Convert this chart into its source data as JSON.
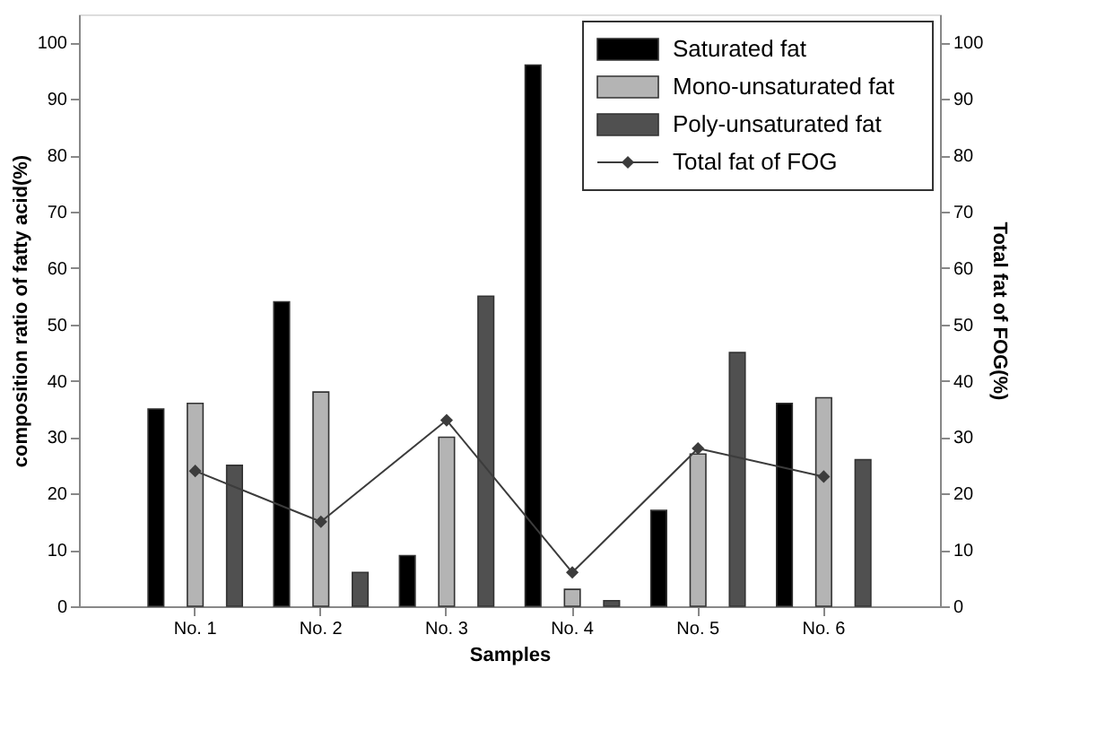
{
  "chart_data": {
    "type": "bar",
    "xlabel": "Samples",
    "ylabel": "composition ratio of fatty acid(%)",
    "y2label": "Total fat of FOG(%)",
    "categories": [
      "No. 1",
      "No. 2",
      "No. 3",
      "No. 4",
      "No. 5",
      "No. 6"
    ],
    "series": [
      {
        "name": "Saturated fat",
        "color": "#000000",
        "values": [
          35,
          54,
          9,
          96,
          17,
          36
        ]
      },
      {
        "name": "Mono-unsaturated fat",
        "color": "#b4b4b4",
        "values": [
          36,
          38,
          30,
          3,
          27,
          37
        ]
      },
      {
        "name": "Poly-unsaturated fat",
        "color": "#505050",
        "values": [
          25,
          6,
          55,
          1,
          45,
          26
        ]
      },
      {
        "name": "Total fat of FOG",
        "color": "#3c3c3c",
        "type": "line",
        "axis": "y2",
        "marker": "diamond",
        "values": [
          24,
          15,
          33,
          6,
          28,
          23
        ]
      }
    ],
    "ylim": [
      0,
      105
    ],
    "yticks": [
      0,
      10,
      20,
      30,
      40,
      50,
      60,
      70,
      80,
      90,
      100
    ],
    "y2lim": [
      0,
      105
    ],
    "y2ticks": [
      0,
      10,
      20,
      30,
      40,
      50,
      60,
      70,
      80,
      90,
      100
    ],
    "grid": false,
    "legend": "top right"
  }
}
